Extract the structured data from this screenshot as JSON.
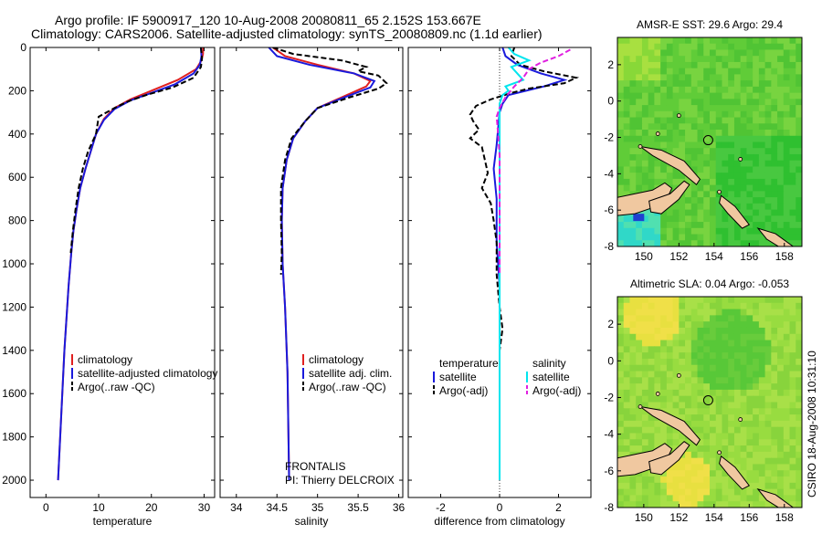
{
  "title": {
    "line1": "Argo profile: IF 5900917_120 10-Aug-2008 20080811_65 2.152S 153.667E",
    "line2": "Climatology: CARS2006. Satellite-adjusted climatology: synTS_20080809.nc (1.1d earlier)"
  },
  "side_text": "CSIRO 18-Aug-2008 10:31:10",
  "colors": {
    "red": "#e02020",
    "blue": "#1a1adc",
    "black": "#000000",
    "cyan": "#00e5ee",
    "magenta": "#e020e0",
    "land": "#f0c8a0",
    "sea_green": "#2fc030",
    "sea_lime": "#a8e040",
    "sea_cyan": "#30d8c8",
    "sea_yellow": "#e8e040"
  },
  "chart_data": [
    {
      "type": "line",
      "panel": "temperature",
      "xlabel": "temperature",
      "ylabel": "",
      "xlim": [
        -3,
        32
      ],
      "ylim": [
        2080,
        0
      ],
      "xticks": [
        0,
        10,
        20,
        30
      ],
      "yticks": [
        0,
        200,
        400,
        600,
        800,
        1000,
        1200,
        1400,
        1600,
        1800,
        2000
      ],
      "legend": [
        "climatology",
        "satellite-adjusted climatology",
        "Argo(..raw -QC)"
      ],
      "series": [
        {
          "name": "climatology",
          "color": "red",
          "dash": "solid",
          "points": [
            [
              29.8,
              0
            ],
            [
              29.8,
              30
            ],
            [
              29.5,
              60
            ],
            [
              28.5,
              100
            ],
            [
              25,
              150
            ],
            [
              20,
              200
            ],
            [
              16,
              240
            ],
            [
              13,
              280
            ],
            [
              11,
              330
            ],
            [
              9.5,
              400
            ],
            [
              8.5,
              480
            ],
            [
              7.5,
              560
            ],
            [
              6.5,
              650
            ],
            [
              5.8,
              750
            ],
            [
              5.2,
              850
            ],
            [
              4.8,
              950
            ],
            [
              4.3,
              1100
            ],
            [
              3.9,
              1250
            ],
            [
              3.5,
              1400
            ],
            [
              3.2,
              1550
            ],
            [
              2.9,
              1700
            ],
            [
              2.6,
              1850
            ],
            [
              2.3,
              2000
            ]
          ]
        },
        {
          "name": "satellite-adjusted climatology",
          "color": "blue",
          "dash": "solid",
          "points": [
            [
              29.4,
              0
            ],
            [
              29.5,
              40
            ],
            [
              29.2,
              80
            ],
            [
              28,
              120
            ],
            [
              24.5,
              170
            ],
            [
              20,
              210
            ],
            [
              16,
              245
            ],
            [
              13,
              285
            ],
            [
              11,
              335
            ],
            [
              9.5,
              400
            ],
            [
              8.5,
              480
            ],
            [
              7.5,
              560
            ],
            [
              6.5,
              650
            ],
            [
              5.8,
              750
            ],
            [
              5.2,
              850
            ],
            [
              4.8,
              950
            ],
            [
              4.3,
              1100
            ],
            [
              3.9,
              1250
            ],
            [
              3.5,
              1400
            ],
            [
              3.2,
              1550
            ],
            [
              2.9,
              1700
            ],
            [
              2.6,
              1850
            ],
            [
              2.3,
              2000
            ]
          ]
        },
        {
          "name": "Argo(..raw -QC)",
          "color": "black",
          "dash": "dash",
          "points": [
            [
              29.4,
              0
            ],
            [
              29.6,
              50
            ],
            [
              29.4,
              90
            ],
            [
              28,
              140
            ],
            [
              24,
              185
            ],
            [
              19,
              220
            ],
            [
              15.5,
              250
            ],
            [
              13,
              280
            ],
            [
              10,
              320
            ],
            [
              9.5,
              400
            ],
            [
              8,
              480
            ],
            [
              7,
              560
            ],
            [
              6.2,
              650
            ],
            [
              5.6,
              750
            ],
            [
              5.1,
              850
            ],
            [
              4.7,
              950
            ]
          ]
        }
      ],
      "annotations": []
    },
    {
      "type": "line",
      "panel": "salinity",
      "xlabel": "salinity",
      "ylabel": "",
      "xlim": [
        33.8,
        36.05
      ],
      "ylim": [
        2080,
        0
      ],
      "xticks": [
        34,
        34.5,
        35,
        35.5,
        36
      ],
      "yticks": [
        0,
        200,
        400,
        600,
        800,
        1000,
        1200,
        1400,
        1600,
        1800,
        2000
      ],
      "legend": [
        "climatology",
        "satellite adj. clim.",
        "Argo(..raw -QC)"
      ],
      "series": [
        {
          "name": "climatology",
          "color": "red",
          "dash": "solid",
          "points": [
            [
              34.45,
              0
            ],
            [
              34.6,
              40
            ],
            [
              35.0,
              80
            ],
            [
              35.45,
              120
            ],
            [
              35.65,
              155
            ],
            [
              35.6,
              180
            ],
            [
              35.3,
              230
            ],
            [
              35.0,
              280
            ],
            [
              34.85,
              340
            ],
            [
              34.7,
              420
            ],
            [
              34.62,
              520
            ],
            [
              34.57,
              650
            ],
            [
              34.56,
              800
            ],
            [
              34.57,
              1000
            ],
            [
              34.6,
              1200
            ],
            [
              34.63,
              1500
            ],
            [
              34.65,
              2000
            ]
          ]
        },
        {
          "name": "satellite adj. clim.",
          "color": "blue",
          "dash": "solid",
          "points": [
            [
              34.4,
              0
            ],
            [
              34.5,
              40
            ],
            [
              34.9,
              80
            ],
            [
              35.45,
              120
            ],
            [
              35.7,
              155
            ],
            [
              35.65,
              185
            ],
            [
              35.3,
              235
            ],
            [
              35.0,
              280
            ],
            [
              34.85,
              340
            ],
            [
              34.7,
              420
            ],
            [
              34.62,
              520
            ],
            [
              34.57,
              650
            ],
            [
              34.56,
              800
            ],
            [
              34.57,
              1000
            ],
            [
              34.6,
              1200
            ],
            [
              34.63,
              1500
            ],
            [
              34.65,
              2000
            ]
          ]
        },
        {
          "name": "Argo(..raw -QC)",
          "color": "black",
          "dash": "dash",
          "points": [
            [
              34.45,
              0
            ],
            [
              34.7,
              30
            ],
            [
              35.3,
              60
            ],
            [
              35.6,
              90
            ],
            [
              35.5,
              110
            ],
            [
              35.75,
              130
            ],
            [
              35.85,
              165
            ],
            [
              35.75,
              190
            ],
            [
              35.4,
              230
            ],
            [
              35.0,
              280
            ],
            [
              34.85,
              340
            ],
            [
              34.68,
              420
            ],
            [
              34.6,
              520
            ],
            [
              34.55,
              650
            ],
            [
              34.55,
              800
            ],
            [
              34.56,
              950
            ],
            [
              34.55,
              1050
            ]
          ]
        }
      ],
      "annotations": [
        "FRONTALIS",
        "PI: Thierry DELCROIX"
      ]
    },
    {
      "type": "line",
      "panel": "difference",
      "xlabel": "difference from climatology",
      "ylabel": "",
      "xlim": [
        -3.1,
        3.1
      ],
      "ylim": [
        2080,
        0
      ],
      "xticks": [
        -2,
        0,
        2
      ],
      "yticks": [
        0,
        200,
        400,
        600,
        800,
        1000,
        1200,
        1400,
        1600,
        1800,
        2000
      ],
      "legend_headers": [
        "temperature",
        "salinity"
      ],
      "legend": [
        "satellite",
        "Argo(-adj)",
        "satellite",
        "Argo(-adj)"
      ],
      "series": [
        {
          "name": "satellite",
          "group": "temperature",
          "color": "blue",
          "dash": "solid",
          "points": [
            [
              0.1,
              0
            ],
            [
              0.2,
              40
            ],
            [
              0.6,
              80
            ],
            [
              1.4,
              120
            ],
            [
              2.2,
              150
            ],
            [
              1.5,
              180
            ],
            [
              0.3,
              220
            ],
            [
              0.1,
              260
            ],
            [
              0,
              300
            ],
            [
              -0.1,
              450
            ],
            [
              -0.2,
              560
            ],
            [
              -0.1,
              700
            ],
            [
              -0.1,
              900
            ],
            [
              0,
              1100
            ],
            [
              0,
              1400
            ],
            [
              0,
              1700
            ],
            [
              0,
              2000
            ]
          ]
        },
        {
          "name": "Argo(-adj)",
          "group": "temperature",
          "color": "black",
          "dash": "dash",
          "points": [
            [
              0.5,
              0
            ],
            [
              0.4,
              40
            ],
            [
              0.7,
              80
            ],
            [
              1.5,
              110
            ],
            [
              2.6,
              140
            ],
            [
              2.2,
              165
            ],
            [
              1.0,
              190
            ],
            [
              0.4,
              210
            ],
            [
              -0.3,
              240
            ],
            [
              -0.8,
              270
            ],
            [
              -1.0,
              310
            ],
            [
              -0.9,
              340
            ],
            [
              -0.7,
              380
            ],
            [
              -1.0,
              420
            ],
            [
              -0.6,
              460
            ],
            [
              -0.5,
              520
            ],
            [
              -0.4,
              580
            ],
            [
              -0.6,
              650
            ],
            [
              -0.3,
              720
            ],
            [
              -0.2,
              800
            ],
            [
              -0.1,
              900
            ],
            [
              -0.1,
              1050
            ],
            [
              0,
              1200
            ],
            [
              0.1,
              1300
            ],
            [
              0,
              1400
            ],
            [
              0,
              1500
            ]
          ]
        },
        {
          "name": "satellite",
          "group": "salinity",
          "color": "cyan",
          "dash": "solid",
          "points": [
            [
              0.3,
              0
            ],
            [
              0.5,
              30
            ],
            [
              1.0,
              60
            ],
            [
              0.4,
              90
            ],
            [
              0.6,
              120
            ],
            [
              0.8,
              150
            ],
            [
              0.2,
              180
            ],
            [
              0.3,
              200
            ],
            [
              0.1,
              220
            ],
            [
              0,
              260
            ],
            [
              0,
              300
            ],
            [
              0,
              600
            ],
            [
              0,
              1000
            ],
            [
              0,
              1500
            ],
            [
              0,
              2000
            ]
          ]
        },
        {
          "name": "Argo(-adj)",
          "group": "salinity",
          "color": "magenta",
          "dash": "dash",
          "points": [
            [
              2.4,
              10
            ],
            [
              2.0,
              40
            ],
            [
              1.4,
              70
            ],
            [
              1.0,
              100
            ],
            [
              0.8,
              140
            ],
            [
              0.5,
              180
            ],
            [
              0.2,
              230
            ],
            [
              0,
              280
            ],
            [
              -0.1,
              320
            ],
            [
              -0.05,
              400
            ],
            [
              0,
              500
            ],
            [
              0,
              700
            ],
            [
              0,
              900
            ],
            [
              0,
              1050
            ]
          ]
        }
      ],
      "annotations": []
    },
    {
      "type": "heatmap",
      "panel": "sst_map",
      "title": "AMSR-E SST: 29.6 Argo: 29.4",
      "xlim": [
        148.5,
        159
      ],
      "ylim": [
        -8,
        3.5
      ],
      "xticks": [
        150,
        152,
        154,
        156,
        158
      ],
      "yticks": [
        -8,
        -6,
        -4,
        -2,
        0,
        2
      ],
      "marker": {
        "lon": 153.667,
        "lat": -2.152
      }
    },
    {
      "type": "heatmap",
      "panel": "sla_map",
      "title": "Altimetric SLA: 0.04 Argo: -0.053",
      "xlim": [
        148.5,
        159
      ],
      "ylim": [
        -8,
        3.5
      ],
      "xticks": [
        150,
        152,
        154,
        156,
        158
      ],
      "yticks": [
        -8,
        -6,
        -4,
        -2,
        0,
        2
      ],
      "marker": {
        "lon": 153.667,
        "lat": -2.152
      }
    }
  ]
}
